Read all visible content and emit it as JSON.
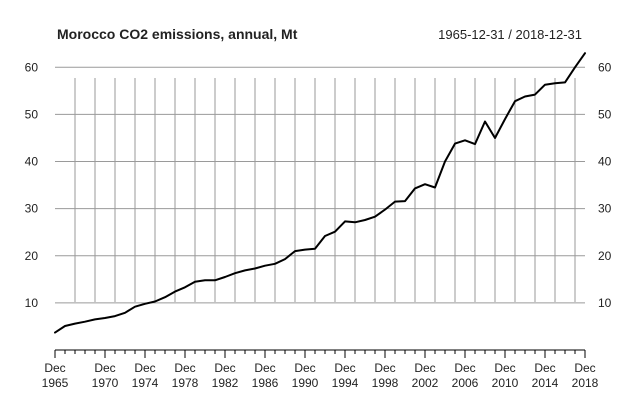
{
  "chart_data": {
    "type": "line",
    "title": "Morocco CO2 emissions, annual, Mt",
    "date_range": "1965-12-31 / 2018-12-31",
    "ylim": [
      0,
      62.4
    ],
    "y_ticks": [
      10,
      20,
      30,
      40,
      50,
      60
    ],
    "y_tick_labels": [
      "10",
      "20",
      "30",
      "40",
      "50",
      "60"
    ],
    "x_ticks": [
      1965,
      1970,
      1974,
      1978,
      1982,
      1986,
      1990,
      1994,
      1998,
      2002,
      2006,
      2010,
      2014,
      2018
    ],
    "x_tick_labels": [
      [
        "Dec",
        "1965"
      ],
      [
        "Dec",
        "1970"
      ],
      [
        "Dec",
        "1974"
      ],
      [
        "Dec",
        "1978"
      ],
      [
        "Dec",
        "1982"
      ],
      [
        "Dec",
        "1986"
      ],
      [
        "Dec",
        "1990"
      ],
      [
        "Dec",
        "1994"
      ],
      [
        "Dec",
        "1998"
      ],
      [
        "Dec",
        "2002"
      ],
      [
        "Dec",
        "2006"
      ],
      [
        "Dec",
        "2010"
      ],
      [
        "Dec",
        "2014"
      ],
      [
        "Dec",
        "2018"
      ]
    ],
    "grid": true,
    "series": [
      {
        "x": [
          1965,
          1966,
          1967,
          1968,
          1969,
          1970,
          1971,
          1972,
          1973,
          1974,
          1975,
          1976,
          1977,
          1978,
          1979,
          1980,
          1981,
          1982,
          1983,
          1984,
          1985,
          1986,
          1987,
          1988,
          1989,
          1990,
          1991,
          1992,
          1993,
          1994,
          1995,
          1996,
          1997,
          1998,
          1999,
          2000,
          2001,
          2002,
          2003,
          2004,
          2005,
          2006,
          2007,
          2008,
          2009,
          2010,
          2011,
          2012,
          2013,
          2014,
          2015,
          2016,
          2017,
          2018
        ],
        "values": [
          3.7,
          5.1,
          5.6,
          6.0,
          6.5,
          6.8,
          7.2,
          7.9,
          9.2,
          9.8,
          10.3,
          11.2,
          12.4,
          13.3,
          14.5,
          14.8,
          14.8,
          15.5,
          16.3,
          16.9,
          17.3,
          17.9,
          18.3,
          19.3,
          21.0,
          21.3,
          21.5,
          24.2,
          25.1,
          27.3,
          27.1,
          27.6,
          28.3,
          29.8,
          31.5,
          31.6,
          34.3,
          35.2,
          34.5,
          40.0,
          43.8,
          44.5,
          43.7,
          48.5,
          45.0,
          49.0,
          52.8,
          53.8,
          54.2,
          56.3,
          56.6,
          56.8,
          60.0,
          63.0
        ],
        "color": "#000000"
      }
    ]
  }
}
